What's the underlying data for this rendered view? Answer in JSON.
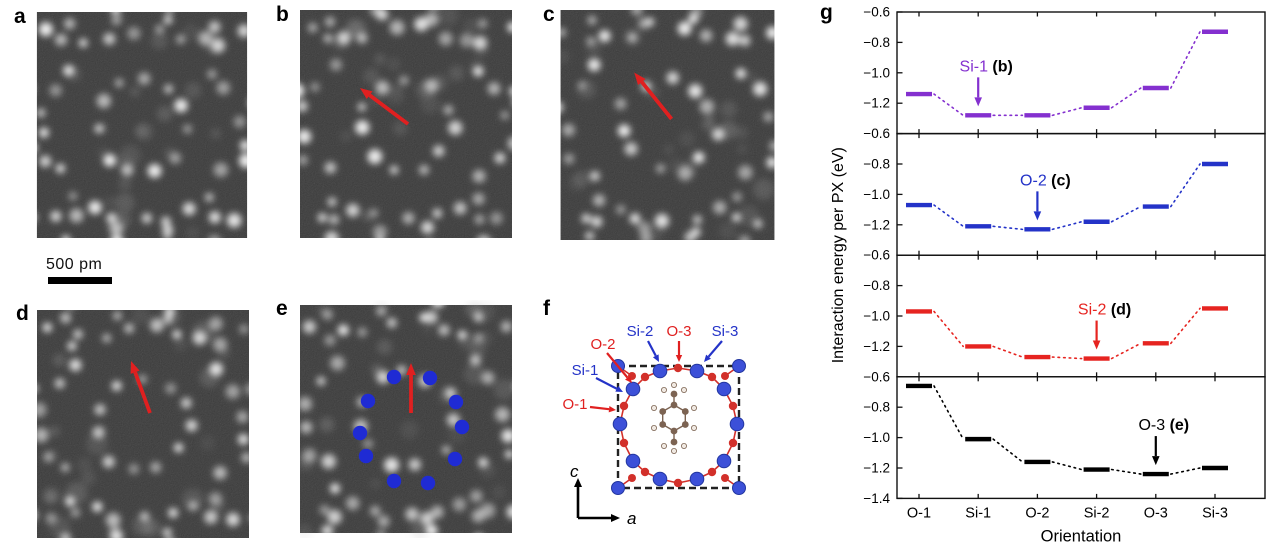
{
  "figure_panels": [
    {
      "letter": "a"
    },
    {
      "letter": "b"
    },
    {
      "letter": "c"
    },
    {
      "letter": "d"
    },
    {
      "letter": "e"
    },
    {
      "letter": "f"
    },
    {
      "letter": "g"
    }
  ],
  "scale_bar": {
    "label": "500 pm"
  },
  "image_arrow_color": "#e02020",
  "e_dot_color": "#1f2bd4",
  "panel_f": {
    "site_labels": [
      {
        "text": "O-2",
        "color": "#e02020"
      },
      {
        "text": "Si-2",
        "color": "#2433c8"
      },
      {
        "text": "O-3",
        "color": "#e02020"
      },
      {
        "text": "Si-3",
        "color": "#2433c8"
      },
      {
        "text": "Si-1",
        "color": "#2433c8"
      },
      {
        "text": "O-1",
        "color": "#e02020"
      }
    ],
    "axes": {
      "vertical": "c",
      "horizontal": "a"
    },
    "colors": {
      "si": "#3c50d8",
      "o": "#d2302a",
      "carbon": "#6e5340",
      "hydrogen": "#efe7df",
      "box": "#222222"
    }
  },
  "chart_data": {
    "type": "line",
    "categories": [
      "O-1",
      "Si-1",
      "O-2",
      "Si-2",
      "O-3",
      "Si-3"
    ],
    "xlabel": "Orientation",
    "ylabel": "Interaction energy per PX (eV)",
    "panel_ylim": [
      -1.4,
      -0.6
    ],
    "yticks": [
      -0.6,
      -0.8,
      -1.0,
      -1.2,
      -1.4
    ],
    "grid": false,
    "marker_style": "horizontal-dash",
    "connector_style": "dotted",
    "legend_position": "none",
    "series": [
      {
        "name": "Si-1",
        "panel_ref": "b",
        "color": "#8430cf",
        "annotation_category": "Si-1",
        "values": [
          -1.14,
          -1.28,
          -1.28,
          -1.23,
          -1.1,
          -0.73
        ]
      },
      {
        "name": "O-2",
        "panel_ref": "c",
        "color": "#2433c8",
        "annotation_category": "O-2",
        "values": [
          -1.07,
          -1.21,
          -1.23,
          -1.18,
          -1.08,
          -0.8
        ]
      },
      {
        "name": "Si-2",
        "panel_ref": "d",
        "color": "#e62420",
        "annotation_category": "Si-2",
        "values": [
          -0.97,
          -1.2,
          -1.27,
          -1.28,
          -1.18,
          -0.95
        ]
      },
      {
        "name": "O-3",
        "panel_ref": "e",
        "color": "#000000",
        "annotation_category": "O-3",
        "values": [
          -0.66,
          -1.01,
          -1.16,
          -1.21,
          -1.24,
          -1.2
        ]
      }
    ]
  }
}
